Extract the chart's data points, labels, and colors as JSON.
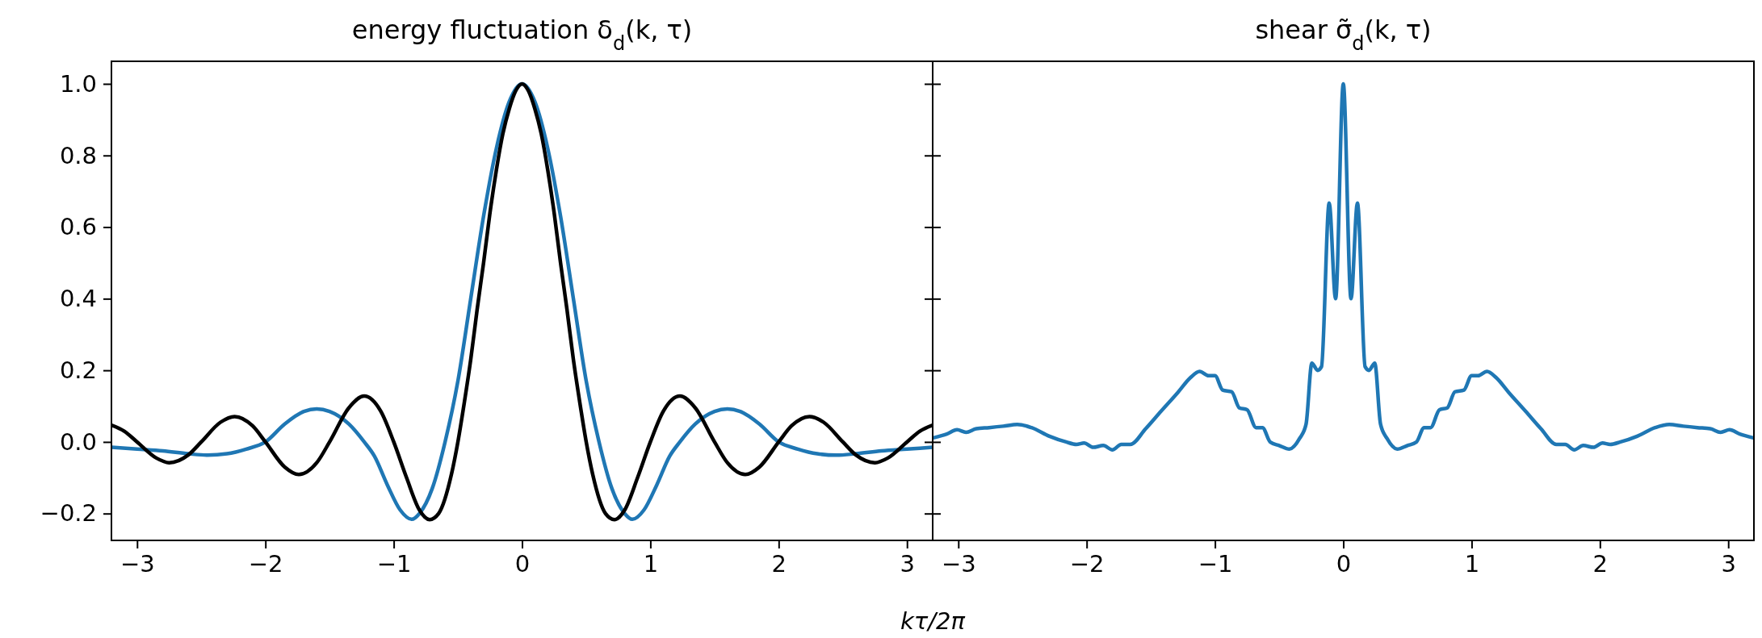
{
  "chart_data": [
    {
      "type": "line",
      "title": "energy fluctuation δ$_{d}$(k, τ)",
      "xlabel": "kτ/2π",
      "xlim": [
        -3.2,
        3.2
      ],
      "xticks": [
        {
          "value": -3,
          "label": "−3"
        },
        {
          "value": -2,
          "label": "−2"
        },
        {
          "value": -1,
          "label": "−1"
        },
        0,
        1,
        2,
        3
      ],
      "ylim": [
        -0.275,
        1.063
      ],
      "yticks": [
        {
          "value": -0.2,
          "label": "−0.2"
        },
        {
          "value": 0,
          "label": "0.0"
        },
        {
          "value": 0.2,
          "label": "0.2"
        },
        {
          "value": 0.4,
          "label": "0.4"
        },
        {
          "value": 0.6,
          "label": "0.6"
        },
        {
          "value": 0.8,
          "label": "0.8"
        },
        {
          "value": 1,
          "label": "1.0"
        }
      ],
      "grid": false,
      "marker": "none",
      "line_style": "solid",
      "series": [
        {
          "color": "#1f77b4",
          "x": [
            -3.2,
            -3.0,
            -2.8,
            -2.6,
            -2.45,
            -2.3,
            -2.15,
            -2.0,
            -1.85,
            -1.7,
            -1.6,
            -1.5,
            -1.35,
            -1.23,
            -1.15,
            -1.05,
            -0.95,
            -0.86,
            -0.8,
            -0.7,
            -0.6,
            -0.5,
            -0.4,
            -0.3,
            -0.2,
            -0.1,
            0,
            0.1,
            0.2,
            0.3,
            0.4,
            0.5,
            0.6,
            0.7,
            0.8,
            0.86,
            0.95,
            1.05,
            1.15,
            1.23,
            1.35,
            1.5,
            1.6,
            1.7,
            1.85,
            2.0,
            2.15,
            2.3,
            2.45,
            2.6,
            2.8,
            3.0,
            3.2
          ],
          "values": [
            -0.015,
            -0.02,
            -0.025,
            -0.033,
            -0.037,
            -0.033,
            -0.02,
            0.0,
            0.05,
            0.085,
            0.092,
            0.085,
            0.05,
            0.0,
            -0.04,
            -0.12,
            -0.19,
            -0.216,
            -0.2,
            -0.13,
            0.0,
            0.17,
            0.4,
            0.63,
            0.82,
            0.95,
            1.0,
            0.95,
            0.82,
            0.63,
            0.4,
            0.17,
            0.0,
            -0.13,
            -0.2,
            -0.216,
            -0.19,
            -0.12,
            -0.04,
            0.0,
            0.05,
            0.085,
            0.092,
            0.085,
            0.05,
            0.0,
            -0.02,
            -0.033,
            -0.037,
            -0.033,
            -0.025,
            -0.02,
            -0.015
          ]
        },
        {
          "color": "#000000",
          "x": [
            -3.2,
            -3.1,
            -3.0,
            -2.85,
            -2.75,
            -2.6,
            -2.5,
            -2.35,
            -2.24,
            -2.1,
            -2.0,
            -1.85,
            -1.74,
            -1.6,
            -1.5,
            -1.35,
            -1.23,
            -1.1,
            -1.0,
            -0.9,
            -0.8,
            -0.72,
            -0.65,
            -0.55,
            -0.5,
            -0.45,
            -0.4,
            -0.35,
            -0.3,
            -0.25,
            -0.2,
            -0.15,
            -0.1,
            -0.05,
            0,
            0.05,
            0.1,
            0.15,
            0.2,
            0.25,
            0.3,
            0.35,
            0.4,
            0.45,
            0.5,
            0.55,
            0.65,
            0.72,
            0.8,
            0.9,
            1.0,
            1.1,
            1.23,
            1.35,
            1.5,
            1.6,
            1.74,
            1.85,
            2.0,
            2.1,
            2.24,
            2.35,
            2.5,
            2.6,
            2.75,
            2.85,
            3.0,
            3.1,
            3.2
          ],
          "values": [
            0.047,
            0.03,
            0.0,
            -0.045,
            -0.058,
            -0.036,
            0.0,
            0.055,
            0.071,
            0.045,
            0.0,
            -0.07,
            -0.091,
            -0.058,
            0.0,
            0.095,
            0.128,
            0.085,
            0.0,
            -0.1,
            -0.19,
            -0.217,
            -0.2,
            -0.09,
            0.0,
            0.11,
            0.23,
            0.37,
            0.5,
            0.64,
            0.76,
            0.86,
            0.93,
            0.98,
            1.0,
            0.98,
            0.93,
            0.86,
            0.76,
            0.64,
            0.5,
            0.37,
            0.23,
            0.11,
            0.0,
            -0.09,
            -0.2,
            -0.217,
            -0.19,
            -0.1,
            0.0,
            0.085,
            0.128,
            0.095,
            0.0,
            -0.058,
            -0.091,
            -0.07,
            0.0,
            0.045,
            0.071,
            0.055,
            0.0,
            -0.036,
            -0.058,
            -0.045,
            0.0,
            0.03,
            0.047
          ]
        }
      ]
    },
    {
      "type": "line",
      "title": "shear σ̃$_{d}$(k, τ)",
      "xlim": [
        -3.2,
        3.2
      ],
      "xticks": [
        {
          "value": -3,
          "label": "−3"
        },
        {
          "value": -2,
          "label": "−2"
        },
        {
          "value": -1,
          "label": "−1"
        },
        0,
        1,
        2,
        3
      ],
      "ylim": [
        -0.275,
        1.063
      ],
      "yticks": [
        {
          "value": -0.2,
          "label": null
        },
        {
          "value": 0,
          "label": null
        },
        {
          "value": 0.2,
          "label": null
        },
        {
          "value": 0.4,
          "label": null
        },
        {
          "value": 0.6,
          "label": null
        },
        {
          "value": 0.8,
          "label": null
        },
        {
          "value": 1,
          "label": null
        }
      ],
      "tick_labels": "x",
      "grid": false,
      "marker": "none",
      "line_style": "solid",
      "series": [
        {
          "color": "#1f77b4",
          "x": [
            -3.19,
            -3.09,
            -3.01,
            -2.94,
            -2.86,
            -2.76,
            -2.65,
            -2.54,
            -2.43,
            -2.29,
            -2.16,
            -2.08,
            -2.02,
            -1.95,
            -1.87,
            -1.8,
            -1.73,
            -1.66,
            -1.54,
            -1.42,
            -1.29,
            -1.19,
            -1.12,
            -1.05,
            -1.0,
            -0.94,
            -0.87,
            -0.81,
            -0.75,
            -0.68,
            -0.63,
            -0.57,
            -0.5,
            -0.42,
            -0.34,
            -0.29,
            -0.245,
            -0.2,
            -0.17,
            -0.11,
            -0.06,
            0,
            0.06,
            0.11,
            0.17,
            0.2,
            0.245,
            0.29,
            0.34,
            0.42,
            0.5,
            0.57,
            0.63,
            0.68,
            0.75,
            0.81,
            0.87,
            0.94,
            1.0,
            1.05,
            1.12,
            1.19,
            1.29,
            1.42,
            1.54,
            1.66,
            1.73,
            1.8,
            1.87,
            1.95,
            2.02,
            2.08,
            2.16,
            2.29,
            2.43,
            2.54,
            2.65,
            2.76,
            2.86,
            2.94,
            3.01,
            3.09,
            3.19
          ],
          "values": [
            0.012,
            0.022,
            0.034,
            0.027,
            0.037,
            0.04,
            0.044,
            0.049,
            0.04,
            0.016,
            0.0,
            -0.007,
            -0.003,
            -0.015,
            -0.01,
            -0.022,
            -0.007,
            -0.007,
            0.037,
            0.086,
            0.138,
            0.18,
            0.197,
            0.185,
            0.185,
            0.145,
            0.14,
            0.095,
            0.09,
            0.04,
            0.04,
            0.0,
            -0.01,
            -0.02,
            0.01,
            0.05,
            0.22,
            0.2,
            0.21,
            0.667,
            0.4,
            1.0,
            0.4,
            0.667,
            0.21,
            0.2,
            0.22,
            0.05,
            0.01,
            -0.02,
            -0.01,
            0.0,
            0.04,
            0.04,
            0.09,
            0.095,
            0.14,
            0.145,
            0.185,
            0.185,
            0.197,
            0.18,
            0.138,
            0.086,
            0.037,
            -0.007,
            -0.007,
            -0.022,
            -0.01,
            -0.015,
            -0.003,
            -0.007,
            0.0,
            0.016,
            0.04,
            0.049,
            0.044,
            0.04,
            0.037,
            0.027,
            0.034,
            0.022,
            0.012
          ]
        }
      ]
    }
  ]
}
